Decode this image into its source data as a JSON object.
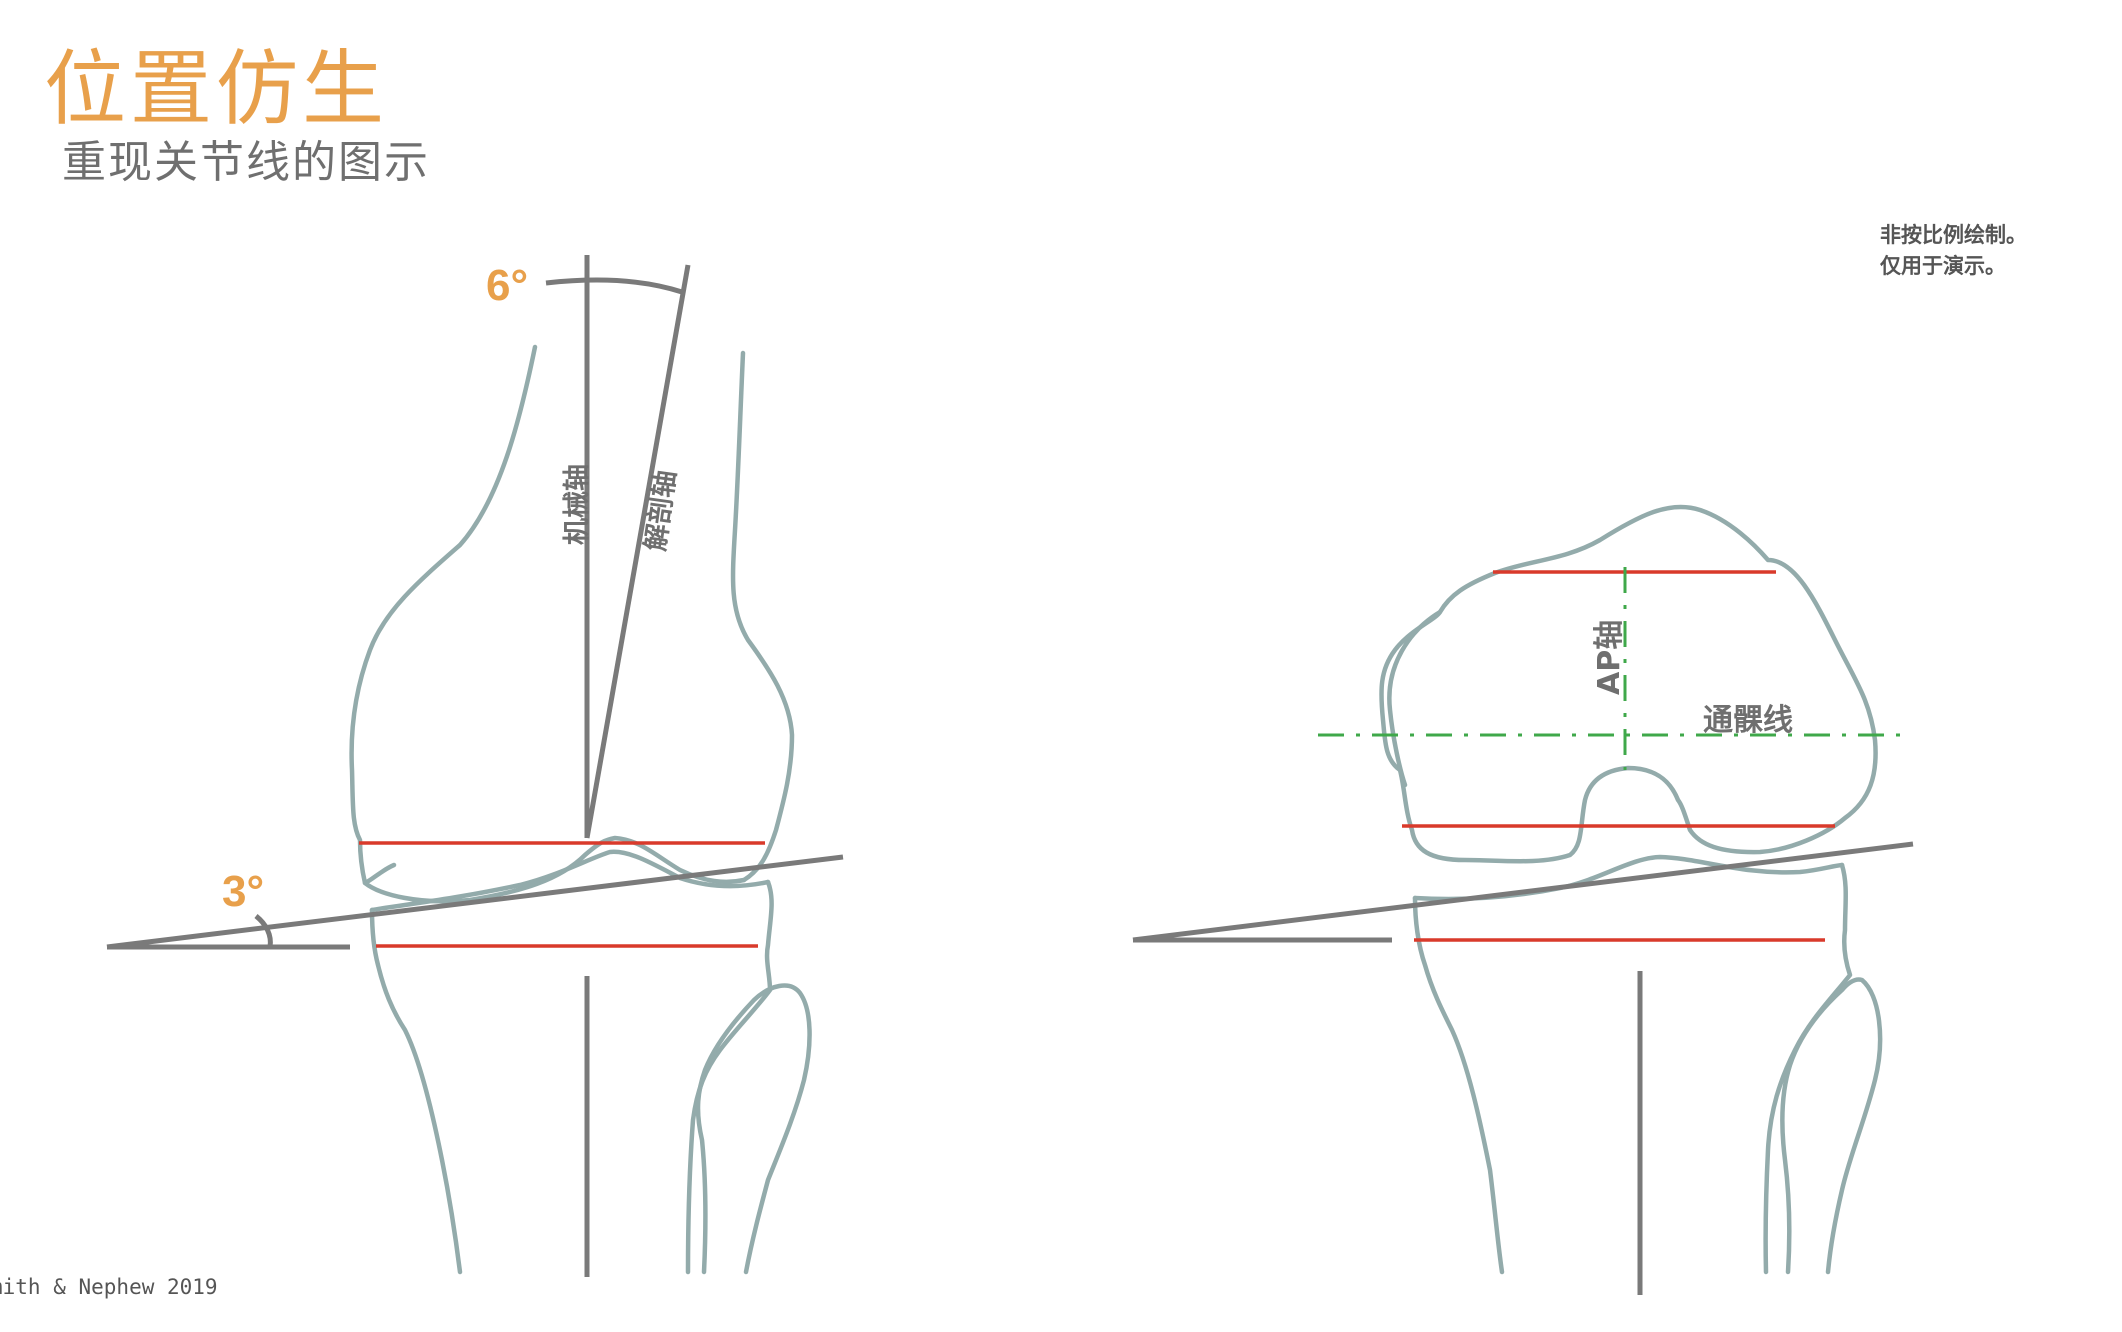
{
  "title": "位置仿生",
  "subtitle": "重现关节线的图示",
  "note": {
    "line1": "非按比例绘制。",
    "line2": "仅用于演示。"
  },
  "copyright": "mith & Nephew 2019",
  "left_diagram": {
    "angle_top": "6°",
    "angle_bottom": "3°",
    "mechanical_axis_label": "机械轴",
    "anatomical_axis_label": "解剖轴"
  },
  "right_diagram": {
    "ap_axis_label": "AP轴",
    "transepicondylar_label": "通髁线"
  },
  "colors": {
    "accent": "#E8A04B",
    "bone_outline": "#93ABAB",
    "axis_gray": "#7a7a7a",
    "joint_line_red": "#D93A2B",
    "guide_green": "#3FA84A"
  }
}
